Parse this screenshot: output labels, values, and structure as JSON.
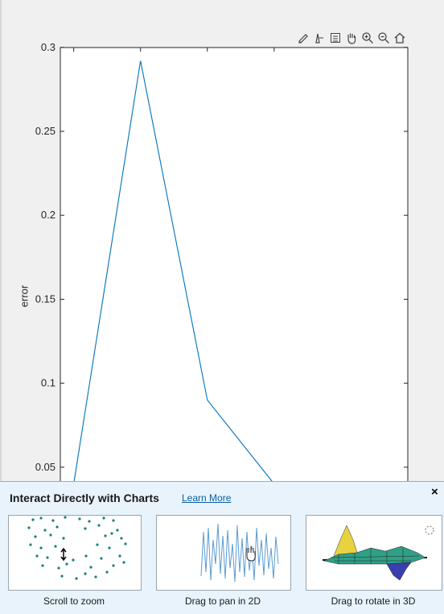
{
  "figure": {
    "ylabel": "error",
    "toolbar": [
      "brush-icon",
      "data-cursor-icon",
      "legend-icon",
      "pan-hand-icon",
      "zoom-in-icon",
      "zoom-out-icon",
      "home-icon"
    ]
  },
  "chart_data": {
    "type": "line",
    "title": "",
    "xlabel": "",
    "ylabel": "error",
    "ylim": [
      0.03,
      0.3
    ],
    "yticks": [
      "0.05",
      "0.1",
      "0.15",
      "0.2",
      "0.25",
      "0.3"
    ],
    "x": [
      0,
      1,
      2,
      3
    ],
    "xlim": [
      -0.2,
      5
    ],
    "series": [
      {
        "values": [
          0.04,
          0.292,
          0.09,
          0.04
        ],
        "color": "#0072bd"
      }
    ]
  },
  "tip": {
    "title": "Interact Directly with Charts",
    "learn_more": "Learn More",
    "close": "×",
    "cards": [
      {
        "caption": "Scroll to zoom"
      },
      {
        "caption": "Drag to pan in 2D"
      },
      {
        "caption": "Drag to rotate in 3D"
      }
    ]
  }
}
